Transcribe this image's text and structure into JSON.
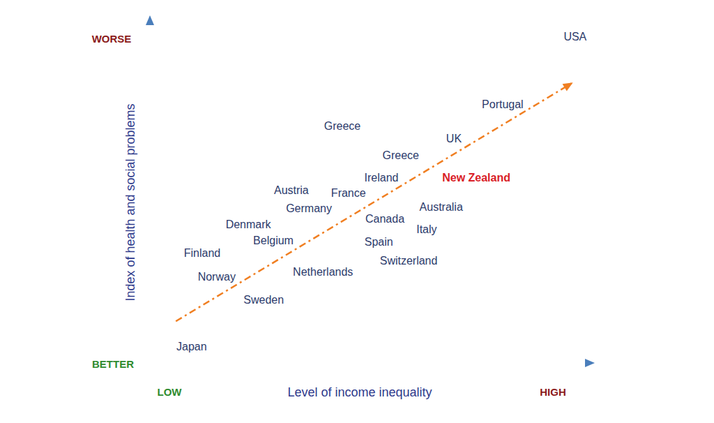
{
  "chart_data": {
    "type": "scatter",
    "x_label": "Level of income inequality",
    "y_label": "Index of health and social problems",
    "annotations": {
      "y_high": "WORSE",
      "y_low": "BETTER",
      "x_low": "LOW",
      "x_high": "HIGH"
    },
    "xlim": [
      0,
      100
    ],
    "ylim": [
      0,
      100
    ],
    "tick_labels": false,
    "grid": false,
    "labels": [
      "USA",
      "Portugal",
      "Greece",
      "UK",
      "Greece",
      "Ireland",
      "New Zealand",
      "Austria",
      "France",
      "Germany",
      "Australia",
      "Canada",
      "Denmark",
      "Italy",
      "Belgium",
      "Spain",
      "Finland",
      "Switzerland",
      "Netherlands",
      "Norway",
      "Sweden",
      "Japan"
    ],
    "x": [
      96.8,
      80.3,
      43.8,
      69.2,
      57.1,
      52.7,
      74.3,
      32.2,
      45.2,
      36.2,
      66.3,
      53.5,
      22.4,
      63.0,
      28.1,
      52.1,
      11.9,
      58.9,
      39.4,
      15.2,
      25.9,
      9.5
    ],
    "values": [
      95.5,
      75.7,
      69.2,
      65.7,
      60.8,
      54.1,
      54.1,
      50.6,
      49.6,
      45.3,
      45.7,
      42.2,
      40.6,
      39.0,
      35.9,
      35.5,
      32.2,
      30.0,
      26.7,
      25.3,
      18.4,
      4.7
    ],
    "colors": [
      "#2b3a6b",
      "#2b3a6b",
      "#2b3a6b",
      "#2b3a6b",
      "#2b3a6b",
      "#2b3a6b",
      "#d92027",
      "#2b3a6b",
      "#2b3a6b",
      "#2b3a6b",
      "#2b3a6b",
      "#2b3a6b",
      "#2b3a6b",
      "#2b3a6b",
      "#2b3a6b",
      "#2b3a6b",
      "#2b3a6b",
      "#2b3a6b",
      "#2b3a6b",
      "#2b3a6b",
      "#2b3a6b",
      "#2b3a6b"
    ],
    "trend": {
      "type": "line",
      "x": [
        5.9,
        96.3
      ],
      "values": [
        12.2,
        82.0
      ],
      "color": "#f07f22",
      "line_style": "dashdot",
      "marker": "arrow"
    }
  }
}
